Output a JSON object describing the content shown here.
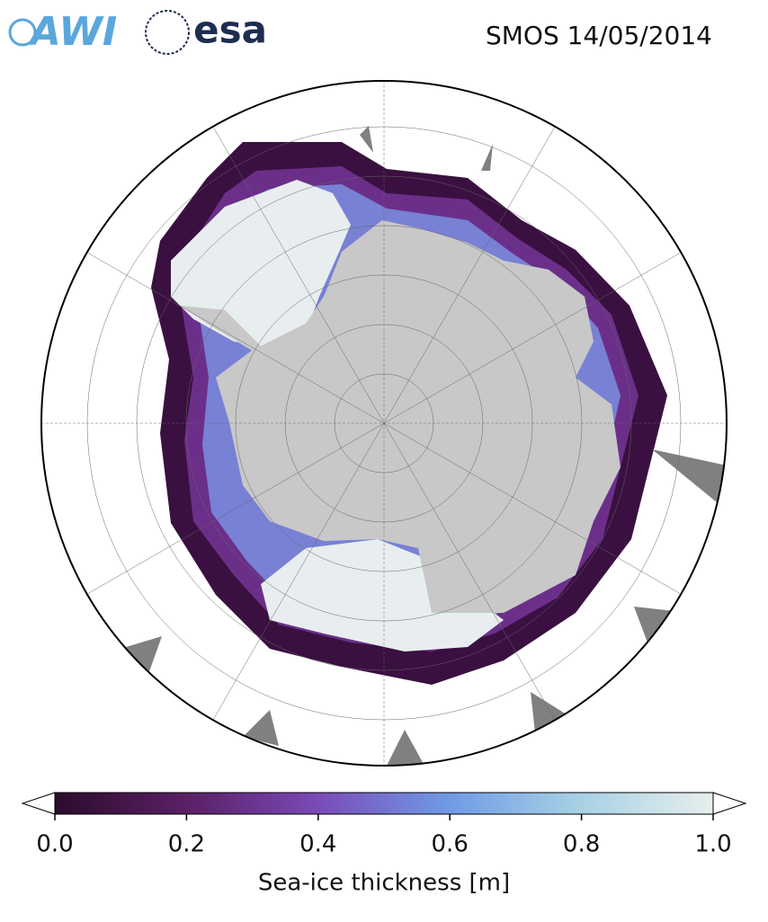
{
  "logos": {
    "awi": "AWI",
    "esa": "esa"
  },
  "title": "SMOS 14/05/2014",
  "colorbar": {
    "label": "Sea-ice thickness [m]",
    "clim": [
      0,
      1
    ],
    "ticks": [
      {
        "value": 0,
        "label": "0.0"
      },
      {
        "value": 0.2,
        "label": "0.2"
      },
      {
        "value": 0.4,
        "label": "0.4"
      },
      {
        "value": 0.6,
        "label": "0.6"
      },
      {
        "value": 0.8,
        "label": "0.8"
      },
      {
        "value": 1,
        "label": "1.0"
      }
    ],
    "colors": [
      "#2b0c2b",
      "#5a1f66",
      "#7a4bb8",
      "#6f9be6",
      "#a8d2e4",
      "#e8eeee"
    ]
  }
}
